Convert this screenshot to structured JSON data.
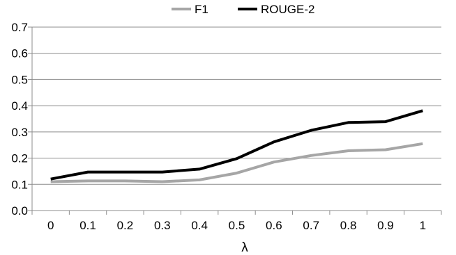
{
  "chart_data": {
    "type": "line",
    "title": "",
    "xlabel": "λ",
    "ylabel": "",
    "x": [
      0,
      0.1,
      0.2,
      0.3,
      0.4,
      0.5,
      0.6,
      0.7,
      0.8,
      0.9,
      1
    ],
    "x_tick_labels": [
      "0",
      "0.1",
      "0.2",
      "0.3",
      "0.4",
      "0.5",
      "0.6",
      "0.7",
      "0.8",
      "0.9",
      "1"
    ],
    "y_tick_labels": [
      "0.0",
      "0.1",
      "0.2",
      "0.3",
      "0.4",
      "0.5",
      "0.6",
      "0.7"
    ],
    "ylim": [
      0,
      0.7
    ],
    "grid": true,
    "legend_position": "top-center",
    "series": [
      {
        "name": "F1",
        "color": "#a6a6a6",
        "values": [
          0.11,
          0.113,
          0.113,
          0.11,
          0.117,
          0.143,
          0.185,
          0.21,
          0.228,
          0.232,
          0.255
        ]
      },
      {
        "name": "ROUGE-2",
        "color": "#000000",
        "values": [
          0.12,
          0.147,
          0.147,
          0.147,
          0.158,
          0.198,
          0.262,
          0.306,
          0.336,
          0.339,
          0.381
        ]
      }
    ]
  }
}
